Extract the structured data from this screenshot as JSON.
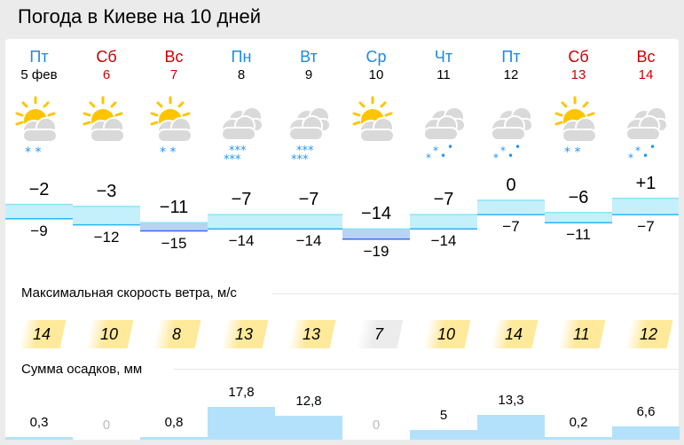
{
  "title": "Погода в Киеве на 10 дней",
  "colors": {
    "weekday": "#1e88e5",
    "weekend": "#cc0000",
    "warm_band": "#c4f0fb",
    "cold_band": "#b6d3f7",
    "wind_high": "#ffe99a",
    "wind_low": "#ececec",
    "precip": "#b3e1fb"
  },
  "days": [
    {
      "dow": "Пт",
      "date": "5 фев",
      "weekend": false,
      "icon": "sun-cloud-snow-icon",
      "max": "−2",
      "min": "−9",
      "tmax": -2,
      "tmin": -9,
      "wind": "14",
      "precip": "0,3",
      "mm": 0.3
    },
    {
      "dow": "Сб",
      "date": "6",
      "weekend": true,
      "icon": "sun-cloud-icon",
      "max": "−3",
      "min": "−12",
      "tmax": -3,
      "tmin": -12,
      "wind": "10",
      "precip": "0",
      "mm": 0
    },
    {
      "dow": "Вс",
      "date": "7",
      "weekend": true,
      "icon": "sun-cloud-snow-icon",
      "max": "−11",
      "min": "−15",
      "tmax": -11,
      "tmin": -15,
      "wind": "8",
      "precip": "0,8",
      "mm": 0.8
    },
    {
      "dow": "Пн",
      "date": "8",
      "weekend": false,
      "icon": "cloudy-heavy-snow-icon",
      "max": "−7",
      "min": "−14",
      "tmax": -7,
      "tmin": -14,
      "wind": "13",
      "precip": "17,8",
      "mm": 17.8
    },
    {
      "dow": "Вт",
      "date": "9",
      "weekend": false,
      "icon": "cloudy-heavy-snow-icon",
      "max": "−7",
      "min": "−14",
      "tmax": -7,
      "tmin": -14,
      "wind": "13",
      "precip": "12,8",
      "mm": 12.8
    },
    {
      "dow": "Ср",
      "date": "10",
      "weekend": false,
      "icon": "sun-cloud-icon",
      "max": "−14",
      "min": "−19",
      "tmax": -14,
      "tmin": -19,
      "wind": "7",
      "precip": "0",
      "mm": 0
    },
    {
      "dow": "Чт",
      "date": "11",
      "weekend": false,
      "icon": "cloudy-sleet-icon",
      "max": "−7",
      "min": "−14",
      "tmax": -7,
      "tmin": -14,
      "wind": "10",
      "precip": "5",
      "mm": 5
    },
    {
      "dow": "Пт",
      "date": "12",
      "weekend": false,
      "icon": "cloudy-sleet-icon",
      "max": "0",
      "min": "−7",
      "tmax": 0,
      "tmin": -7,
      "wind": "14",
      "precip": "13,3",
      "mm": 13.3
    },
    {
      "dow": "Сб",
      "date": "13",
      "weekend": true,
      "icon": "sun-cloud-snow-icon",
      "max": "−6",
      "min": "−11",
      "tmax": -6,
      "tmin": -11,
      "wind": "11",
      "precip": "0,2",
      "mm": 0.2
    },
    {
      "dow": "Вс",
      "date": "14",
      "weekend": true,
      "icon": "cloudy-sleet-icon",
      "max": "+1",
      "min": "−7",
      "tmax": 1,
      "tmin": -7,
      "wind": "12",
      "precip": "6,6",
      "mm": 6.6
    }
  ],
  "wind_section": "Максимальная скорость ветра, м/с",
  "precip_section": "Сумма осадков, мм"
}
